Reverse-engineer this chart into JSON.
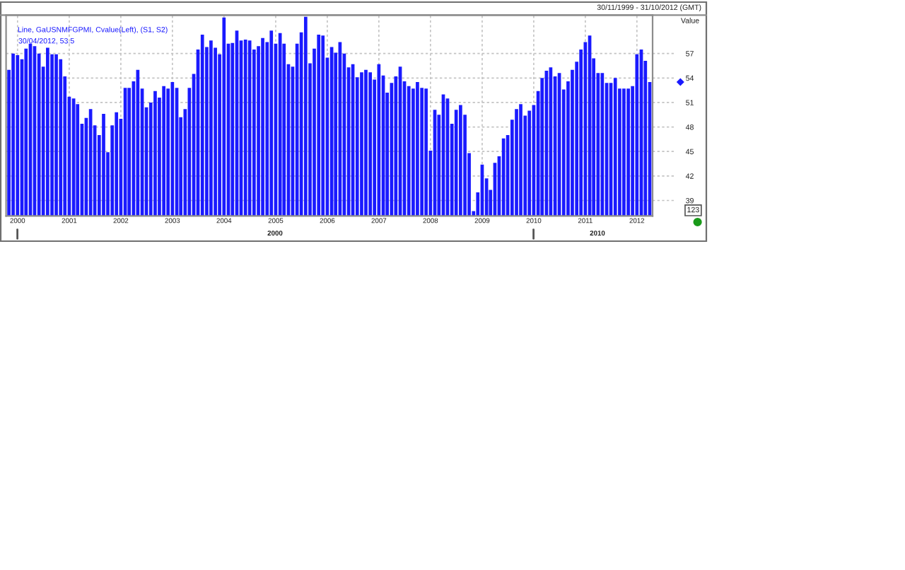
{
  "chart_data": {
    "type": "bar",
    "title": "30/11/1999 - 31/10/2012 (GMT)",
    "ylabel": "Value",
    "annotations": [
      "30/04/2012, 53.5",
      "123",
      "2000",
      "2010"
    ],
    "x": [
      "1999-11",
      "1999-12",
      "2000-01",
      "2000-02",
      "2000-03",
      "2000-04",
      "2000-05",
      "2000-06",
      "2000-07",
      "2000-08",
      "2000-09",
      "2000-10",
      "2000-11",
      "2000-12",
      "2001-01",
      "2001-02",
      "2001-03",
      "2001-04",
      "2001-05",
      "2001-06",
      "2001-07",
      "2001-08",
      "2001-09",
      "2001-10",
      "2001-11",
      "2001-12",
      "2002-01",
      "2002-02",
      "2002-03",
      "2002-04",
      "2002-05",
      "2002-06",
      "2002-07",
      "2002-08",
      "2002-09",
      "2002-10",
      "2002-11",
      "2002-12",
      "2003-01",
      "2003-02",
      "2003-03",
      "2003-04",
      "2003-05",
      "2003-06",
      "2003-07",
      "2003-08",
      "2003-09",
      "2003-10",
      "2003-11",
      "2003-12",
      "2004-01",
      "2004-02",
      "2004-03",
      "2004-04",
      "2004-05",
      "2004-06",
      "2004-07",
      "2004-08",
      "2004-09",
      "2004-10",
      "2004-11",
      "2004-12",
      "2005-01",
      "2005-02",
      "2005-03",
      "2005-04",
      "2005-05",
      "2005-06",
      "2005-07",
      "2005-08",
      "2005-09",
      "2005-10",
      "2005-11",
      "2005-12",
      "2006-01",
      "2006-02",
      "2006-03",
      "2006-04",
      "2006-05",
      "2006-06",
      "2006-07",
      "2006-08",
      "2006-09",
      "2006-10",
      "2006-11",
      "2006-12",
      "2007-01",
      "2007-02",
      "2007-03",
      "2007-04",
      "2007-05",
      "2007-06",
      "2007-07",
      "2007-08",
      "2007-09",
      "2007-10",
      "2007-11",
      "2007-12",
      "2008-01",
      "2008-02",
      "2008-03",
      "2008-04",
      "2008-05",
      "2008-06",
      "2008-07",
      "2008-08",
      "2008-09",
      "2008-10",
      "2008-11",
      "2008-12",
      "2009-01",
      "2009-02",
      "2009-03",
      "2009-04",
      "2009-05",
      "2009-06",
      "2009-07",
      "2009-08",
      "2009-09",
      "2009-10",
      "2009-11",
      "2009-12",
      "2010-01",
      "2010-02",
      "2010-03",
      "2010-04",
      "2010-05",
      "2010-06",
      "2010-07",
      "2010-08",
      "2010-09",
      "2010-10",
      "2010-11",
      "2010-12",
      "2011-01",
      "2011-02",
      "2011-03",
      "2011-04",
      "2011-05",
      "2011-06",
      "2011-07",
      "2011-08",
      "2011-09",
      "2011-10",
      "2011-11",
      "2011-12",
      "2012-01",
      "2012-02",
      "2012-03",
      "2012-04"
    ],
    "series": [
      {
        "name": "Line, GaUSNMFGPMI, Cvalue(Left), (S1, S2)",
        "color": "#1a1aff",
        "values": [
          55.0,
          57.0,
          56.8,
          56.3,
          57.6,
          58.2,
          57.9,
          57.0,
          55.4,
          57.7,
          56.9,
          56.9,
          56.3,
          54.2,
          51.7,
          51.5,
          50.8,
          48.4,
          49.1,
          50.2,
          48.2,
          47.0,
          49.6,
          44.9,
          48.2,
          49.8,
          49.0,
          52.8,
          52.8,
          53.6,
          55.0,
          52.7,
          50.4,
          51.0,
          52.4,
          51.6,
          53.0,
          52.7,
          53.5,
          52.8,
          49.2,
          50.2,
          52.8,
          54.5,
          57.5,
          59.3,
          57.8,
          58.6,
          57.7,
          56.9,
          61.4,
          58.2,
          58.3,
          59.8,
          58.6,
          58.7,
          58.6,
          57.5,
          57.9,
          58.9,
          58.4,
          59.8,
          58.2,
          59.5,
          58.2,
          55.7,
          55.4,
          58.2,
          59.6,
          61.5,
          55.8,
          57.6,
          59.3,
          59.2,
          56.5,
          57.8,
          57.1,
          58.4,
          57.0,
          55.3,
          55.7,
          54.1,
          54.7,
          55.0,
          54.7,
          53.8,
          55.7,
          54.3,
          52.2,
          53.4,
          54.2,
          55.4,
          53.6,
          53.0,
          52.7,
          53.5,
          52.8,
          52.7,
          45.1,
          50.1,
          49.5,
          52.0,
          51.5,
          48.4,
          50.1,
          50.7,
          49.5,
          44.8,
          37.7,
          40.0,
          43.4,
          41.7,
          40.3,
          43.6,
          44.4,
          46.6,
          47.0,
          48.9,
          50.2,
          50.8,
          49.4,
          50.0,
          50.7,
          52.4,
          54.0,
          54.9,
          55.3,
          54.2,
          54.6,
          52.6,
          53.6,
          55.0,
          56.0,
          57.5,
          58.4,
          59.2,
          56.4,
          54.6,
          54.6,
          53.4,
          53.4,
          54.0,
          52.7,
          52.7,
          52.7,
          53.0,
          56.9,
          57.5,
          56.1,
          53.5
        ]
      }
    ],
    "xlim": [
      "1999-10-12",
      "2012-04-21"
    ],
    "xticks": [
      "2000",
      "2001",
      "2002",
      "2003",
      "2004",
      "2005",
      "2006",
      "2007",
      "2008",
      "2009",
      "2010",
      "2011",
      "2012"
    ],
    "ylim": [
      37.1,
      61.7
    ],
    "yticks": [
      39,
      42,
      45,
      48,
      51,
      54,
      57
    ],
    "grid": true,
    "legend": "top left"
  }
}
